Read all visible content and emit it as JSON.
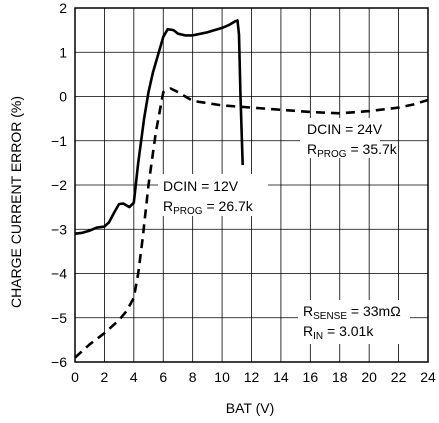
{
  "chart_data": {
    "type": "line",
    "xlabel": "BAT (V)",
    "ylabel": "CHARGE CURRENT ERROR (%)",
    "xlim": [
      0,
      24
    ],
    "ylim": [
      -6,
      2
    ],
    "xticks": [
      0,
      2,
      4,
      6,
      8,
      10,
      12,
      14,
      16,
      18,
      20,
      22,
      24
    ],
    "yticks": [
      -6,
      -5,
      -4,
      -3,
      -2,
      -1,
      0,
      1,
      2
    ],
    "xtick_labels": [
      "0",
      "2",
      "4",
      "6",
      "8",
      "10",
      "12",
      "14",
      "16",
      "18",
      "20",
      "22",
      "24"
    ],
    "ytick_labels": [
      "−6",
      "−5",
      "−4",
      "−3",
      "−2",
      "−1",
      "0",
      "1",
      "2"
    ],
    "grid": true,
    "series": [
      {
        "style": "solid",
        "x": [
          0,
          0.5,
          1,
          1.5,
          2,
          2.3,
          2.7,
          3.0,
          3.3,
          3.7,
          4.0,
          4.3,
          4.7,
          5.0,
          5.3,
          5.7,
          6.0,
          6.3,
          6.7,
          7.0,
          7.5,
          8.0,
          9.0,
          10.0,
          10.5,
          10.9,
          11.05,
          11.15,
          11.25,
          11.4
        ],
        "y": [
          -3.1,
          -3.08,
          -3.03,
          -2.96,
          -2.94,
          -2.85,
          -2.6,
          -2.43,
          -2.42,
          -2.5,
          -2.4,
          -1.5,
          -0.5,
          0.1,
          0.55,
          1.0,
          1.35,
          1.52,
          1.5,
          1.42,
          1.38,
          1.38,
          1.45,
          1.55,
          1.62,
          1.7,
          1.72,
          1.4,
          0.0,
          -1.55
        ]
      },
      {
        "style": "dashed",
        "x": [
          0,
          1,
          2,
          3,
          3.5,
          4.0,
          4.3,
          4.6,
          5.0,
          5.5,
          6.0,
          6.5,
          7.0,
          7.5,
          8.0,
          10,
          12,
          14,
          16,
          18,
          20,
          22,
          23,
          24
        ],
        "y": [
          -5.9,
          -5.6,
          -5.35,
          -5.05,
          -4.85,
          -4.55,
          -4.0,
          -3.2,
          -2.0,
          -0.8,
          0.1,
          0.18,
          0.1,
          0.0,
          -0.1,
          -0.2,
          -0.25,
          -0.3,
          -0.35,
          -0.38,
          -0.33,
          -0.25,
          -0.18,
          -0.08
        ]
      }
    ],
    "annotations": [
      {
        "line1": "DCIN = 24V",
        "line2_main": "R",
        "line2_sub": "PROG",
        "line2_rest": " = 35.7k"
      },
      {
        "line1": "DCIN = 12V",
        "line2_main": "R",
        "line2_sub": "PROG",
        "line2_rest": " = 26.7k"
      },
      {
        "line1_main": "R",
        "line1_sub": "SENSE",
        "line1_rest": " = 33mΩ",
        "line2_main": "R",
        "line2_sub": "IN",
        "line2_rest": " = 3.01k"
      }
    ]
  }
}
